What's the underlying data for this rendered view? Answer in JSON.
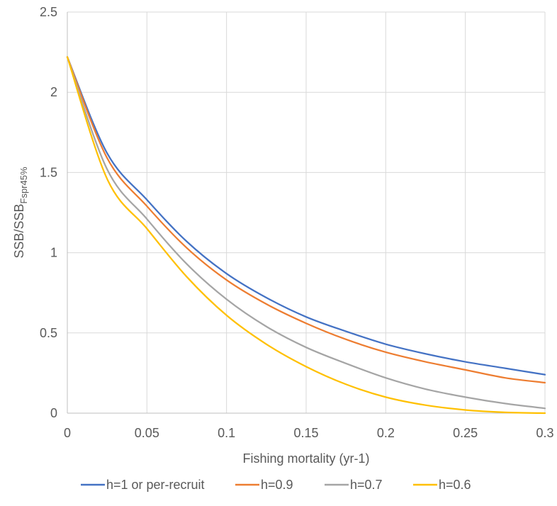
{
  "chart_data": {
    "type": "line",
    "title": "",
    "xlabel": "Fishing mortality (yr-1)",
    "ylabel_main": "SSB/SSB",
    "ylabel_sub": "Fspr45%",
    "xlim": [
      0,
      0.3
    ],
    "ylim": [
      0,
      2.5
    ],
    "xticks": [
      0,
      0.05,
      0.1,
      0.15,
      0.2,
      0.25,
      0.3
    ],
    "xtick_labels": [
      "0",
      "0.05",
      "0.1",
      "0.15",
      "0.2",
      "0.25",
      "0.3"
    ],
    "yticks": [
      0,
      0.5,
      1,
      1.5,
      2,
      2.5
    ],
    "ytick_labels": [
      "0",
      "0.5",
      "1",
      "1.5",
      "2",
      "2.5"
    ],
    "grid": "vertical and horizontal",
    "legend_position": "bottom",
    "x": [
      0,
      0.025,
      0.05,
      0.075,
      0.1,
      0.125,
      0.15,
      0.175,
      0.2,
      0.225,
      0.25,
      0.275,
      0.3
    ],
    "series": [
      {
        "name": "h=1 or per-recruit",
        "color": "#4472C4",
        "values": [
          2.22,
          1.62,
          1.33,
          1.07,
          0.87,
          0.72,
          0.6,
          0.51,
          0.43,
          0.37,
          0.32,
          0.28,
          0.24
        ]
      },
      {
        "name": "h=0.9",
        "color": "#ED7D31",
        "values": [
          2.22,
          1.59,
          1.29,
          1.03,
          0.83,
          0.68,
          0.56,
          0.46,
          0.38,
          0.32,
          0.27,
          0.22,
          0.19
        ]
      },
      {
        "name": "h=0.7",
        "color": "#A5A5A5",
        "values": [
          2.22,
          1.52,
          1.21,
          0.93,
          0.71,
          0.54,
          0.41,
          0.31,
          0.22,
          0.15,
          0.1,
          0.06,
          0.03
        ]
      },
      {
        "name": "h=0.6",
        "color": "#FFC000",
        "values": [
          2.22,
          1.46,
          1.15,
          0.85,
          0.61,
          0.43,
          0.29,
          0.18,
          0.1,
          0.05,
          0.02,
          0.005,
          0.0
        ]
      }
    ]
  }
}
